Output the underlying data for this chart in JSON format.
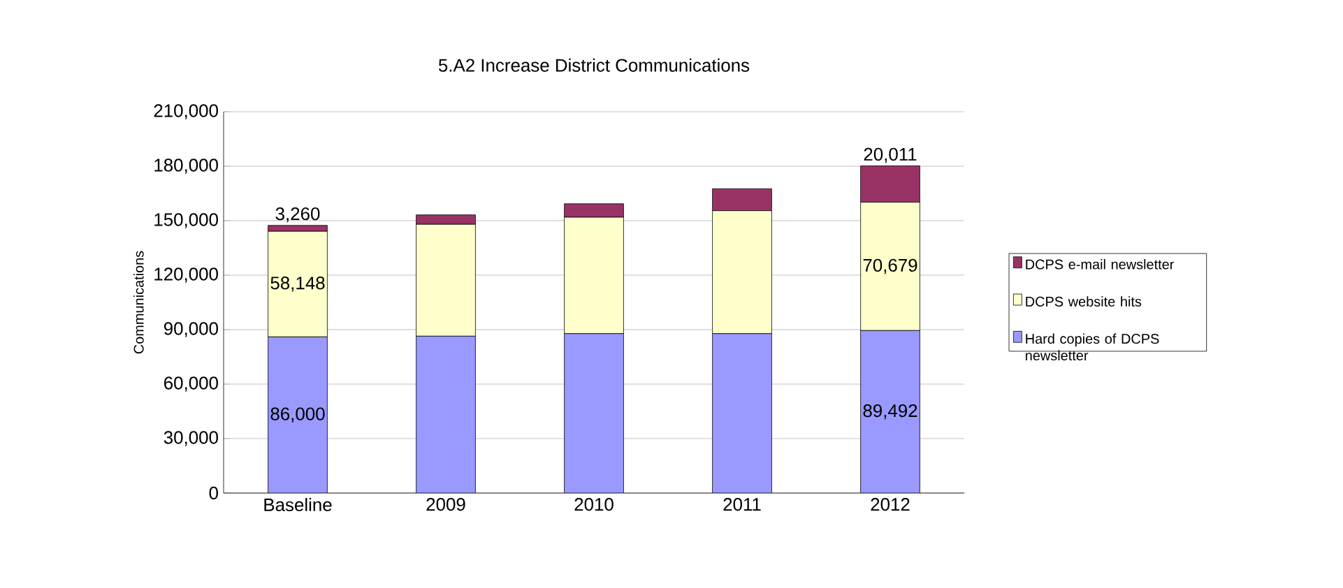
{
  "chart_data": {
    "type": "bar",
    "title": "5.A2  Increase District Communications",
    "ylabel": "Communications",
    "categories": [
      "Baseline",
      "2009",
      "2010",
      "2011",
      "2012"
    ],
    "stacked": true,
    "legend": "right",
    "grid": "y",
    "ylim": [
      0,
      210000
    ],
    "yticks": [
      {
        "value": 0,
        "label": "0"
      },
      {
        "value": 30000,
        "label": "30,000"
      },
      {
        "value": 60000,
        "label": "60,000"
      },
      {
        "value": 90000,
        "label": "90,000"
      },
      {
        "value": 120000,
        "label": "120,000"
      },
      {
        "value": 150000,
        "label": "150,000"
      },
      {
        "value": 180000,
        "label": "180,000"
      },
      {
        "value": 210000,
        "label": "210,000"
      }
    ],
    "series": [
      {
        "name": "Hard copies of DCPS newsletter",
        "color": "#9999ff",
        "values": [
          86000,
          86400,
          87800,
          87800,
          89492
        ],
        "value_labels": [
          "86,000",
          null,
          null,
          null,
          "89,492"
        ]
      },
      {
        "name": "DCPS website hits",
        "color": "#ffffcc",
        "values": [
          58148,
          61600,
          64100,
          67700,
          70679
        ],
        "value_labels": [
          "58,148",
          null,
          null,
          null,
          "70,679"
        ]
      },
      {
        "name": "DCPS e-mail newsletter",
        "color": "#993366",
        "values": [
          3260,
          5200,
          7400,
          12100,
          20011
        ],
        "value_labels": [
          "3,260",
          null,
          null,
          null,
          "20,011"
        ]
      }
    ]
  }
}
